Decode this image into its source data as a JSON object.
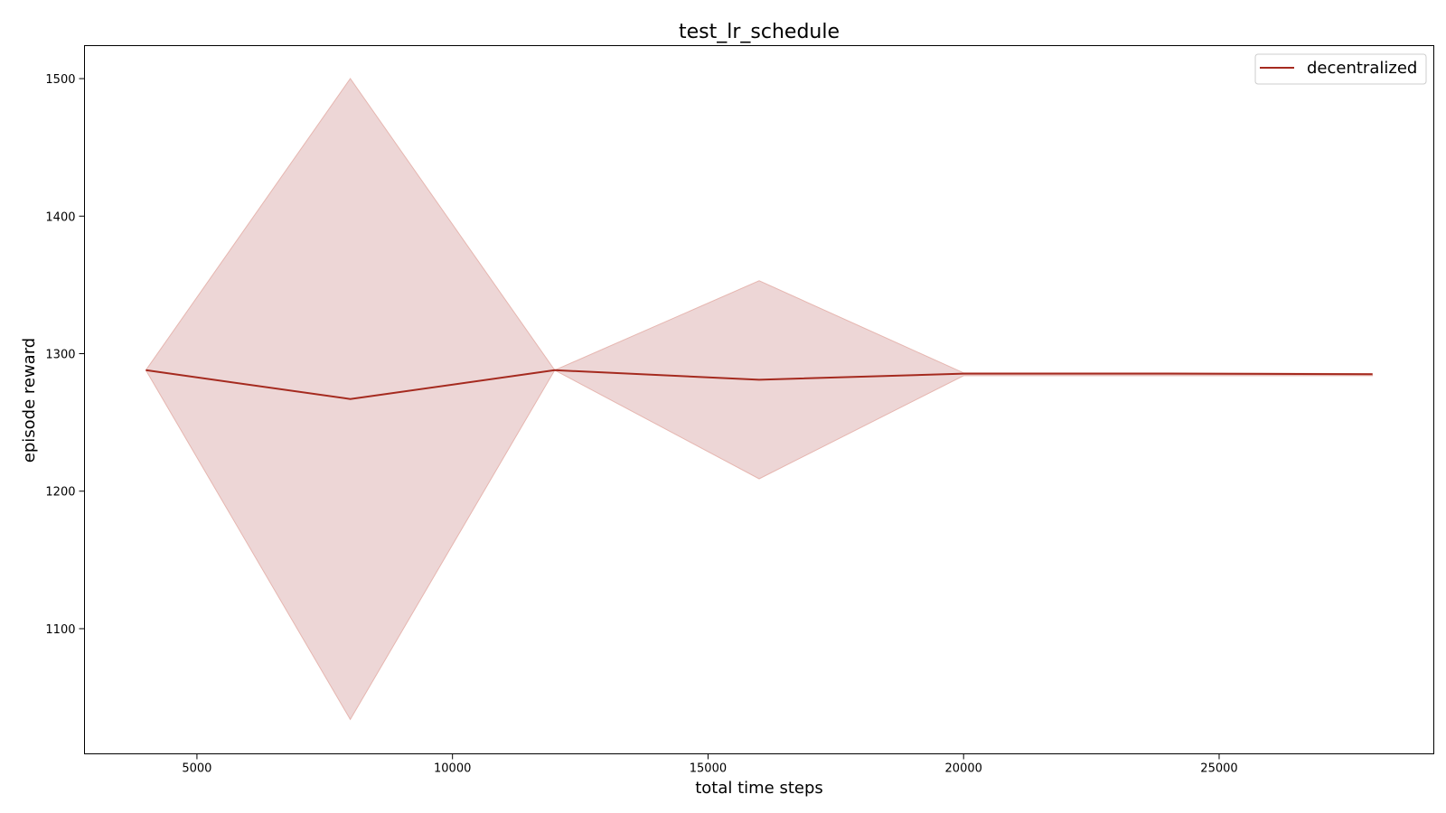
{
  "chart_data": {
    "type": "line",
    "title": "test_lr_schedule",
    "xlabel": "total time steps",
    "ylabel": "episode reward",
    "xlim": [
      2800,
      29200
    ],
    "ylim": [
      1009,
      1524
    ],
    "xticks": [
      5000,
      10000,
      15000,
      20000,
      25000
    ],
    "yticks": [
      1100,
      1200,
      1300,
      1400,
      1500
    ],
    "grid": false,
    "legend_position": "upper-right",
    "series": [
      {
        "name": "decentralized",
        "color": "#a52a1f",
        "band_color": "#edd6d6",
        "band_edge_color": "#e6b6b0",
        "x": [
          4000,
          8000,
          12000,
          16000,
          20000,
          24000,
          28000
        ],
        "y": [
          1288,
          1267,
          1288,
          1281,
          1285.5,
          1285.5,
          1285
        ],
        "y_upper": [
          1288,
          1500,
          1288,
          1353,
          1286,
          1286,
          1285.5
        ],
        "y_lower": [
          1288,
          1034,
          1288,
          1209,
          1284,
          1284,
          1284
        ]
      }
    ]
  }
}
